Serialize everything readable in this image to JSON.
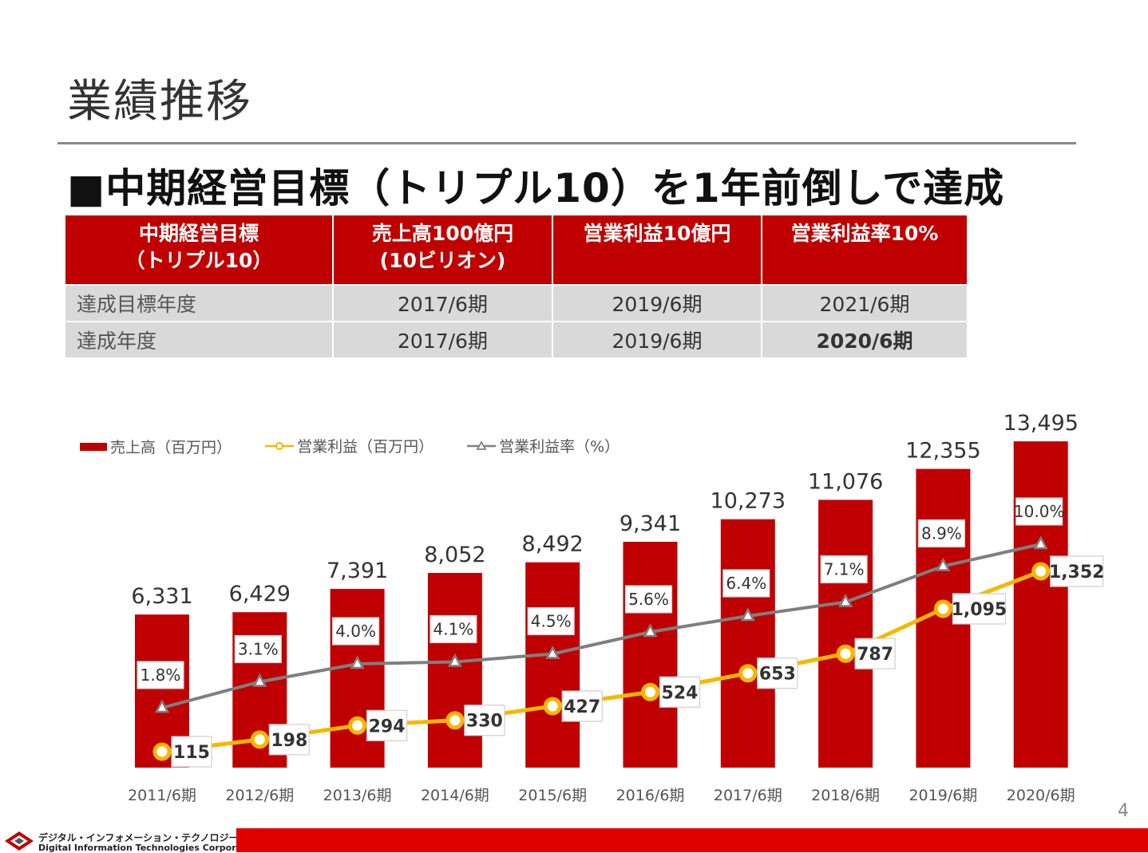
{
  "title": "業績推移",
  "headline": "■中期経営目標（トリプル10）を1年前倒しで達成",
  "goal_table": {
    "header": {
      "col1": [
        "中期経営目標",
        "（トリプル10）"
      ],
      "col2": [
        "売上高100億円",
        "(10ビリオン)"
      ],
      "col3": [
        "営業利益10億円"
      ],
      "col4": [
        "営業利益率10%"
      ]
    },
    "rows": [
      {
        "label": "達成目標年度",
        "values": [
          "2017/6期",
          "2019/6期",
          "2021/6期"
        ]
      },
      {
        "label": "達成年度",
        "values": [
          "2017/6期",
          "2019/6期",
          "2020/6期"
        ]
      }
    ]
  },
  "colors": {
    "accent_red": "#c00000",
    "line_orange": "#f5b800",
    "line_gray": "#7f7f7f",
    "footer_red": "#e00000"
  },
  "chart_data": {
    "type": "bar",
    "categories": [
      "2011/6期",
      "2012/6期",
      "2013/6期",
      "2014/6期",
      "2015/6期",
      "2016/6期",
      "2017/6期",
      "2018/6期",
      "2019/6期",
      "2020/6期"
    ],
    "series": [
      {
        "name": "売上高（百万円）",
        "type": "bar",
        "values": [
          6331,
          6429,
          7391,
          8052,
          8492,
          9341,
          10273,
          11076,
          12355,
          13495
        ],
        "labels": [
          "6,331",
          "6,429",
          "7,391",
          "8,052",
          "8,492",
          "9,341",
          "10,273",
          "11,076",
          "12,355",
          "13,495"
        ]
      },
      {
        "name": "営業利益（百万円）",
        "type": "line",
        "marker": "circle",
        "values": [
          115,
          198,
          294,
          330,
          427,
          524,
          653,
          787,
          1095,
          1352
        ],
        "labels": [
          "115",
          "198",
          "294",
          "330",
          "427",
          "524",
          "653",
          "787",
          "1,095",
          "1,352"
        ]
      },
      {
        "name": "営業利益率（%）",
        "type": "line",
        "marker": "triangle",
        "values": [
          1.8,
          3.1,
          4.0,
          4.1,
          4.5,
          5.6,
          6.4,
          7.1,
          8.9,
          10.0
        ],
        "labels": [
          "1.8%",
          "3.1%",
          "4.0%",
          "4.1%",
          "4.5%",
          "5.6%",
          "6.4%",
          "7.1%",
          "8.9%",
          "10.0%"
        ]
      }
    ],
    "legend_position": "top-left",
    "grid": false
  },
  "page_number": "4",
  "footer": {
    "company_jp": "デジタル・インフォメーション・テクノロジー株式会社",
    "company_en": "Digital Information Technologies Corporation"
  }
}
